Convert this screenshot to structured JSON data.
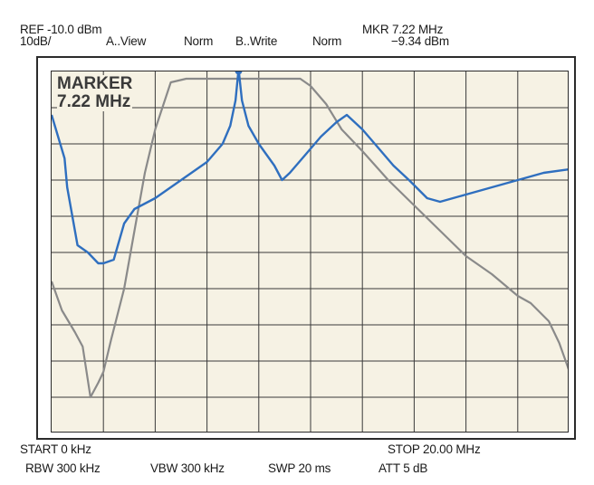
{
  "header": {
    "ref": "REF -10.0 dBm",
    "scale": "10dB/",
    "trace_a": "A..View",
    "trace_a_mode": "Norm",
    "trace_b": "B..Write",
    "trace_b_mode": "Norm",
    "marker_freq": "MKR 7.22 MHz",
    "marker_level": "−9.34 dBm"
  },
  "marker_box": {
    "title": "MARKER",
    "value": "7.22  MHz"
  },
  "footer": {
    "start": "START  0  kHz",
    "stop": "STOP  20.00 MHz",
    "rbw": "RBW 300 kHz",
    "vbw": "VBW 300 kHz",
    "swp": "SWP 20 ms",
    "att": "ATT 5 dB"
  },
  "colors": {
    "trace_a": "#8a8a8a",
    "trace_b": "#2f6fbf",
    "screen_bg": "#f6f2e4",
    "grid": "#3a3a3a"
  },
  "chart_data": {
    "type": "line",
    "x_unit": "MHz",
    "y_unit": "dBm",
    "xlim": [
      0,
      20
    ],
    "ylim": [
      -110,
      -10
    ],
    "grid": true,
    "series": [
      {
        "x": [
          0,
          0.4,
          0.9,
          1.2,
          1.5,
          1.8,
          2.0,
          2.3,
          2.8,
          3.2,
          3.6,
          4.0,
          4.6,
          5.2,
          5.4,
          6.0,
          7.0,
          8.0,
          9.0,
          9.6,
          10.0,
          10.6,
          11.2,
          12.0,
          13.0,
          14.0,
          15.0,
          16.0,
          17.0,
          18.0,
          18.5,
          19.2,
          19.6,
          20.0
        ],
        "y": [
          -68,
          -76,
          -82,
          -86,
          -100,
          -96,
          -93,
          -84,
          -70,
          -54,
          -38,
          -26,
          -13,
          -12,
          -12,
          -12,
          -12,
          -12,
          -12,
          -12,
          -14,
          -19,
          -26,
          -32,
          -40,
          -47,
          -54,
          -61,
          -66,
          -72,
          -74,
          -79,
          -85,
          -93
        ]
      },
      {
        "x": [
          0,
          0.5,
          0.6,
          1.0,
          1.4,
          1.8,
          2.0,
          2.4,
          2.8,
          3.2,
          4.0,
          5.0,
          6.0,
          6.6,
          6.9,
          7.1,
          7.22,
          7.35,
          7.6,
          8.0,
          8.6,
          8.9,
          9.2,
          9.8,
          10.4,
          11.0,
          11.4,
          12.0,
          12.6,
          13.2,
          13.8,
          14.5,
          15.0,
          15.5,
          16.0,
          17.0,
          18.0,
          19.0,
          20.0
        ],
        "y": [
          -22,
          -34,
          -42,
          -58,
          -60,
          -63,
          -63,
          -62,
          -52,
          -48,
          -45,
          -40,
          -35,
          -30,
          -25,
          -18,
          -9.34,
          -18,
          -25,
          -30,
          -36,
          -40,
          -38,
          -33,
          -28,
          -24,
          -22,
          -26,
          -31,
          -36,
          -40,
          -45,
          -46,
          -45,
          -44,
          -42,
          -40,
          -38,
          -37
        ]
      }
    ]
  }
}
